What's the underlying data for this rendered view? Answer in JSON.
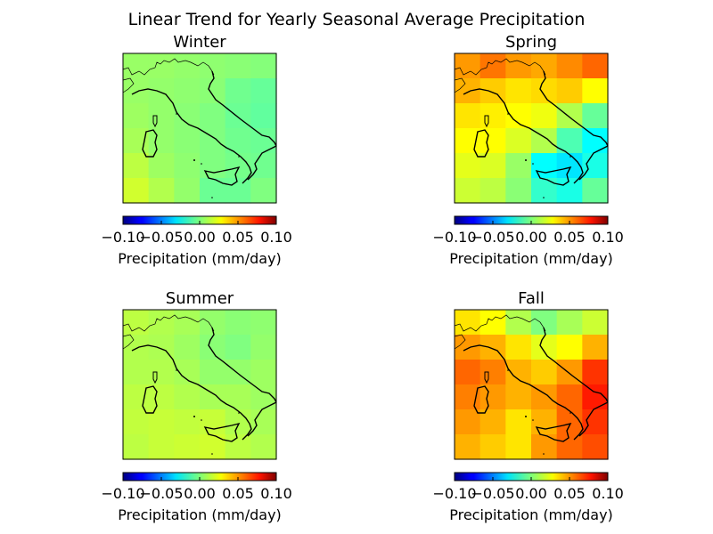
{
  "figure_title": "Linear Trend for Yearly Seasonal Average Precipitation",
  "chart_data": [
    {
      "type": "heatmap",
      "title": "Winter",
      "colormap": "jet",
      "vmin": -0.1,
      "vmax": 0.1,
      "colorbar_ticks": [
        "−0.10",
        "−0.05",
        "0.00",
        "0.05",
        "0.10"
      ],
      "colorbar_label": "Precipitation (mm/day)",
      "grid": [
        [
          0.005,
          0.005,
          0.004,
          0.003,
          0.002,
          0.001
        ],
        [
          0.005,
          0.004,
          0.003,
          0.002,
          -0.003,
          -0.005
        ],
        [
          0.006,
          0.004,
          0.002,
          0.0,
          -0.004,
          -0.006
        ],
        [
          0.008,
          0.004,
          0.002,
          0.0,
          -0.003,
          -0.004
        ],
        [
          0.012,
          0.006,
          0.003,
          0.0,
          -0.002,
          -0.003
        ],
        [
          0.016,
          0.01,
          0.004,
          -0.004,
          -0.004,
          0.0
        ]
      ]
    },
    {
      "type": "heatmap",
      "title": "Spring",
      "colormap": "jet",
      "vmin": -0.1,
      "vmax": 0.1,
      "colorbar_ticks": [
        "−0.10",
        "−0.05",
        "0.00",
        "0.05",
        "0.10"
      ],
      "colorbar_label": "Precipitation (mm/day)",
      "grid": [
        [
          0.045,
          0.052,
          0.045,
          0.042,
          0.048,
          0.055
        ],
        [
          0.04,
          0.035,
          0.03,
          0.032,
          0.035,
          0.025
        ],
        [
          0.03,
          0.028,
          0.025,
          0.022,
          0.01,
          -0.005
        ],
        [
          0.025,
          0.025,
          0.018,
          0.01,
          -0.01,
          -0.025
        ],
        [
          0.02,
          0.018,
          0.005,
          -0.025,
          -0.03,
          -0.02
        ],
        [
          0.015,
          0.012,
          0.002,
          -0.015,
          -0.02,
          -0.005
        ]
      ]
    },
    {
      "type": "heatmap",
      "title": "Summer",
      "colormap": "jet",
      "vmin": -0.1,
      "vmax": 0.1,
      "colorbar_ticks": [
        "−0.10",
        "−0.05",
        "0.00",
        "0.05",
        "0.10"
      ],
      "colorbar_label": "Precipitation (mm/day)",
      "grid": [
        [
          0.012,
          0.01,
          0.008,
          0.004,
          0.002,
          0.003
        ],
        [
          0.01,
          0.009,
          0.006,
          0.002,
          0.0,
          0.004
        ],
        [
          0.01,
          0.01,
          0.008,
          0.004,
          0.004,
          0.006
        ],
        [
          0.012,
          0.012,
          0.01,
          0.008,
          0.008,
          0.006
        ],
        [
          0.013,
          0.014,
          0.013,
          0.014,
          0.01,
          0.008
        ],
        [
          0.012,
          0.014,
          0.015,
          0.016,
          0.012,
          0.01
        ]
      ]
    },
    {
      "type": "heatmap",
      "title": "Fall",
      "colormap": "jet",
      "vmin": -0.1,
      "vmax": 0.1,
      "colorbar_ticks": [
        "−0.10",
        "−0.05",
        "0.00",
        "0.05",
        "0.10"
      ],
      "colorbar_label": "Precipitation (mm/day)",
      "grid": [
        [
          0.03,
          0.025,
          0.01,
          0.0,
          0.008,
          0.015
        ],
        [
          0.045,
          0.04,
          0.03,
          0.02,
          0.025,
          0.04
        ],
        [
          0.055,
          0.05,
          0.04,
          0.035,
          0.045,
          0.065
        ],
        [
          0.05,
          0.045,
          0.04,
          0.045,
          0.055,
          0.07
        ],
        [
          0.045,
          0.04,
          0.03,
          0.04,
          0.055,
          0.065
        ],
        [
          0.04,
          0.035,
          0.03,
          0.045,
          0.055,
          0.06
        ]
      ]
    }
  ]
}
